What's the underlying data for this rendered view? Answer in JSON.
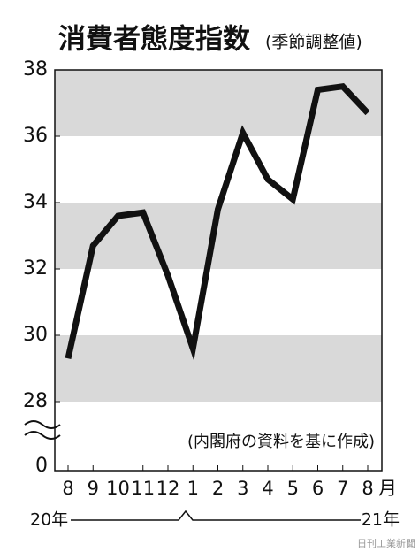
{
  "chart_data": {
    "type": "line",
    "title": "消費者態度指数",
    "subtitle": "(季節調整値)",
    "categories": [
      "8",
      "9",
      "10",
      "11",
      "12",
      "1",
      "2",
      "3",
      "4",
      "5",
      "6",
      "7",
      "8"
    ],
    "x_unit": "月",
    "values": [
      29.3,
      32.7,
      33.6,
      33.7,
      31.8,
      29.6,
      33.8,
      36.1,
      34.7,
      34.1,
      37.4,
      37.5,
      36.7
    ],
    "color": "#111111",
    "ylim": [
      28,
      38
    ],
    "yticks": [
      28,
      30,
      32,
      34,
      36,
      38
    ],
    "y_break_label": "0",
    "bands": true,
    "band_color": "#d9d9d9",
    "source": "(内閣府の資料を基に作成)",
    "year_start": "20年",
    "year_end": "21年",
    "credit": "日刊工業新聞"
  }
}
